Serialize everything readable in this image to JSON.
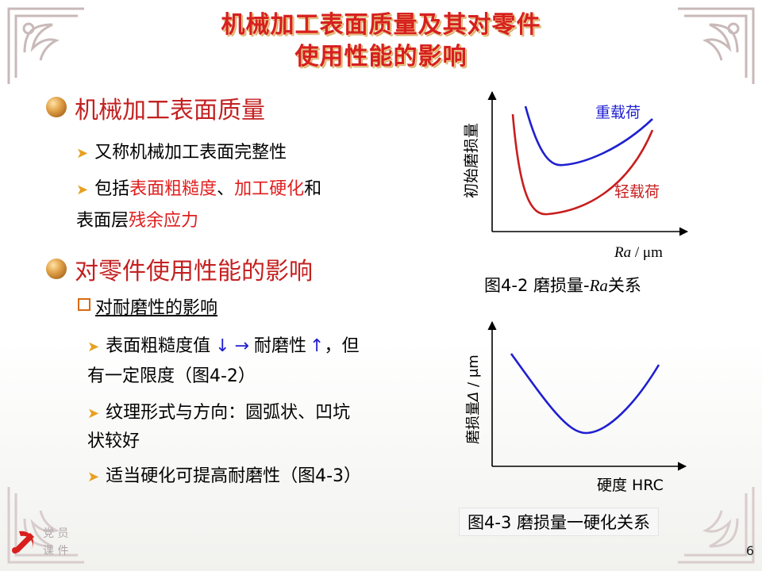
{
  "title": {
    "line1": "机械加工表面质量及其对零件",
    "line2": "使用性能的影响"
  },
  "section1": {
    "heading": "机械加工表面质量",
    "bullet1": "又称机械加工表面完整性",
    "bullet2": {
      "p1": "包括",
      "r1": "表面粗糙度",
      "p2": "、",
      "r2": "加工硬化",
      "p3": "和",
      "p4": "表面层",
      "r3": "残余应力"
    }
  },
  "section2": {
    "heading": "对零件使用性能的影响",
    "sub": "对耐磨性的影响",
    "items": [
      {
        "l1": "表面粗糙度值",
        "d1": "↓",
        "d2": "→",
        "l2": "耐磨性",
        "d3": "↑",
        "l3": "，但",
        "l4": "有一定限度（图4-2）"
      },
      {
        "l1": "纹理形式与方向：圆弧状、凹坑",
        "l2": "状较好"
      },
      {
        "l1": "适当硬化可提高耐磨性（图4-3）"
      }
    ]
  },
  "fig1": {
    "ylabel": "初始磨损量",
    "xlabel_italic": "Ra",
    "xlabel_unit": " / μm",
    "heavy": "重载荷",
    "light": "轻载荷",
    "caption_prefix": "图4-2   磨损量-",
    "caption_italic": "Ra",
    "caption_suffix": "关系",
    "colors": {
      "heavy": "#1f1fd0",
      "light": "#c81e1e"
    }
  },
  "fig2": {
    "ylabel_prefix": "磨损量",
    "ylabel_italic": "Δ",
    "ylabel_unit": " / μm",
    "xlabel": "硬度 HRC",
    "caption": "图4-3   磨损量一硬化关系",
    "color": "#1f1fd0"
  },
  "logo": {
    "line1": "党 员",
    "line2": "课 件"
  },
  "page": "6"
}
